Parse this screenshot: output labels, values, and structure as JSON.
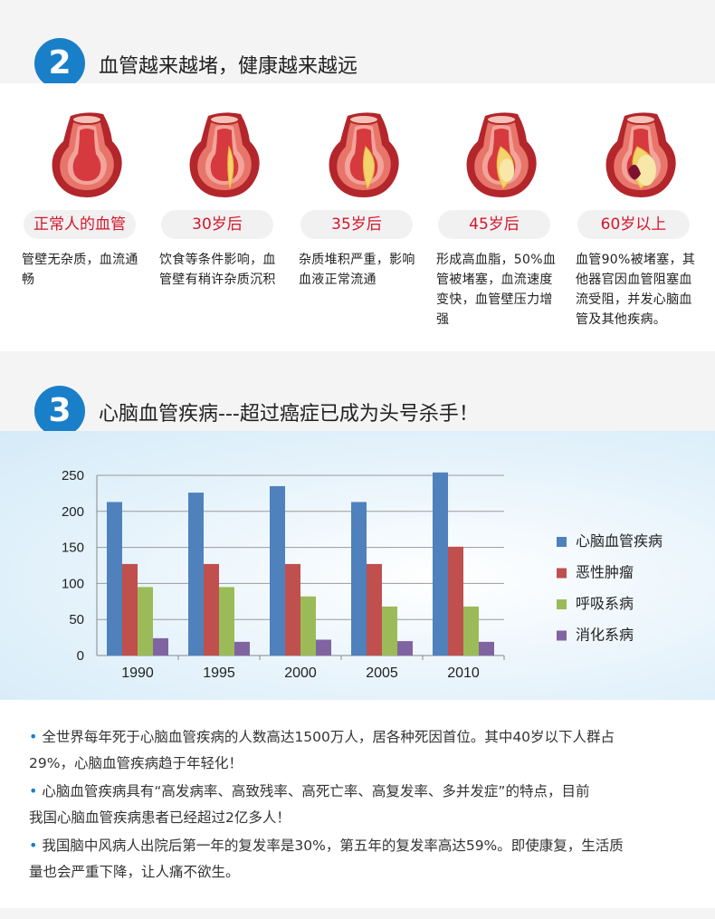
{
  "section2": {
    "number": "2",
    "title": "血管越来越堵，健康越来越远",
    "stages": [
      {
        "label": "正常人的血管",
        "desc": "管壁无杂质，血流通畅",
        "plaque": 0
      },
      {
        "label": "30岁后",
        "desc": "饮食等条件影响，血管壁有稍许杂质沉积",
        "plaque": 1
      },
      {
        "label": "35岁后",
        "desc": "杂质堆积严重，影响血液正常流通",
        "plaque": 2
      },
      {
        "label": "45岁后",
        "desc": "形成高血脂，50%血管被堵塞，血流速度变快，血管壁压力增强",
        "plaque": 3
      },
      {
        "label": "60岁以上",
        "desc": "血管90%被堵塞，其他器官因血管阻塞血流受阻，并发心脑血管及其他疾病。",
        "plaque": 4
      }
    ]
  },
  "section3": {
    "number": "3",
    "title": "心脑血管疾病---超过癌症已成为头号杀手！"
  },
  "chart_data": {
    "type": "bar",
    "categories": [
      "1990",
      "1995",
      "2000",
      "2005",
      "2010"
    ],
    "series": [
      {
        "name": "心脑血管疾病",
        "color": "#4f81bd",
        "values": [
          213,
          226,
          235,
          213,
          254
        ]
      },
      {
        "name": "恶性肿瘤",
        "color": "#c0504d",
        "values": [
          127,
          127,
          127,
          127,
          151
        ]
      },
      {
        "name": "呼吸系病",
        "color": "#9bbb59",
        "values": [
          95,
          95,
          82,
          68,
          68
        ]
      },
      {
        "name": "消化系病",
        "color": "#8064a2",
        "values": [
          24,
          19,
          22,
          20,
          19
        ]
      }
    ],
    "yticks": [
      "0",
      "50",
      "100",
      "150",
      "200",
      "250"
    ],
    "ylim": [
      0,
      250
    ],
    "grid": true,
    "legend": "right"
  },
  "bullets": [
    {
      "line1": "全世界每年死于心脑血管疾病的人数高达1500万人，居各种死因首位。其中40岁以下人群占",
      "line2": "29%，心脑血管疾病趋于年轻化！"
    },
    {
      "line1": "心脑血管疾病具有“高发病率、高致残率、高死亡率、高复发率、多并发症”的特点，目前",
      "line2": "我国心脑血管疾病患者已经超过2亿多人！"
    },
    {
      "line1": "我国脑中风病人出院后第一年的复发率是30%，第五年的复发率高达59%。即使康复，生活质",
      "line2": "量也会严重下降，让人痛不欲生。"
    }
  ]
}
